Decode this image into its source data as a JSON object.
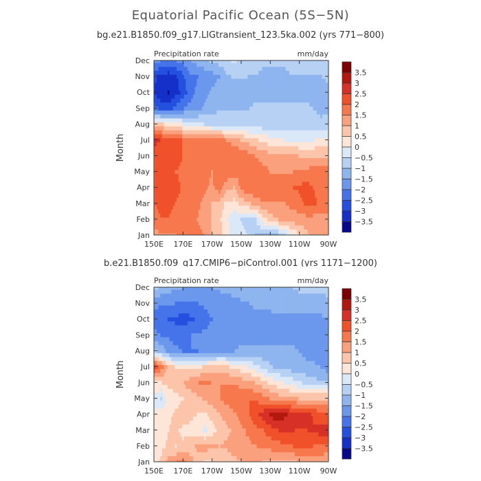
{
  "title": "Equatorial Pacific Ocean (5S−5N)",
  "panels": [
    {
      "subtitle": "bg.e21.B1850.f09_g17.LIGtransient_123.5ka.002 (yrs 771−800)",
      "variable_label": "Precipitation rate",
      "units_label": "mm/day",
      "ylabel": "Month"
    },
    {
      "subtitle": "b.e21.B1850.f09_g17.CMIP6−piControl.001 (yrs 1171−1200)",
      "variable_label": "Precipitation rate",
      "units_label": "mm/day",
      "ylabel": "Month"
    }
  ],
  "chart_data": [
    {
      "type": "heatmap",
      "title": "bg.e21.B1850.f09_g17.LIGtransient_123.5ka.002 (yrs 771−800)",
      "xlabel": "",
      "ylabel": "Month",
      "x_ticks": [
        "150E",
        "170E",
        "170W",
        "150W",
        "130W",
        "110W",
        "90W"
      ],
      "y_ticks": [
        "Jan",
        "Feb",
        "Mar",
        "Apr",
        "May",
        "Jun",
        "Jul",
        "Aug",
        "Sep",
        "Oct",
        "Nov",
        "Dec"
      ],
      "colorbar_levels": [
        "3.5",
        "3",
        "2.5",
        "2",
        "1.5",
        "1",
        "0.5",
        "0",
        "−0.5",
        "−1",
        "−1.5",
        "−2",
        "−2.5",
        "−3",
        "−3.5"
      ],
      "colorbar_colors": [
        "#7f0000",
        "#b2180e",
        "#d73027",
        "#f0502a",
        "#f7784c",
        "#fba07c",
        "#fcc5aa",
        "#fde6d8",
        "#dbe8f8",
        "#b7d1f4",
        "#8fb5ef",
        "#6b98ec",
        "#4574ea",
        "#2450e0",
        "#1430c8",
        "#08088c"
      ],
      "values": [
        [
          1.2,
          1.5,
          1.5,
          1.5,
          1.7,
          1.8,
          1.7,
          1.5,
          1.0,
          0.7,
          0.3,
          -0.3,
          -0.3,
          -0.5,
          -1.0,
          -1.0,
          -1.0,
          -1.0,
          -0.6,
          -0.1,
          0.5,
          0.9,
          1.2,
          1.2,
          1.1
        ],
        [
          1.8,
          2.0,
          2.0,
          1.8,
          1.8,
          1.7,
          1.5,
          1.3,
          1.0,
          0.6,
          0.1,
          -0.4,
          -0.5,
          -0.7,
          -0.5,
          0.3,
          0.7,
          1.0,
          1.2,
          1.3,
          1.3,
          1.3,
          1.3,
          1.3,
          1.4
        ],
        [
          2.0,
          2.2,
          2.2,
          2.0,
          1.8,
          1.7,
          1.6,
          1.3,
          1.0,
          0.8,
          0.4,
          0.3,
          0.7,
          0.9,
          1.2,
          1.4,
          1.5,
          1.5,
          1.5,
          1.6,
          1.8,
          2.2,
          2.1,
          1.8,
          1.7
        ],
        [
          2.0,
          2.1,
          2.1,
          2.2,
          1.9,
          1.6,
          1.9,
          1.6,
          1.4,
          1.8,
          1.2,
          1.0,
          1.6,
          1.9,
          2.0,
          2.0,
          2.0,
          1.9,
          1.9,
          2.0,
          2.1,
          2.2,
          2.0,
          1.8,
          1.7
        ],
        [
          2.0,
          2.2,
          2.2,
          2.0,
          1.9,
          1.9,
          1.7,
          1.6,
          1.5,
          2.0,
          1.9,
          1.7,
          1.7,
          1.8,
          1.9,
          1.7,
          1.5,
          1.5,
          1.5,
          1.5,
          1.6,
          1.6,
          1.8,
          1.7,
          1.7
        ],
        [
          2.0,
          2.1,
          2.3,
          2.3,
          2.0,
          2.0,
          1.9,
          1.8,
          2.0,
          2.0,
          2.0,
          1.9,
          1.9,
          1.7,
          1.5,
          1.3,
          1.2,
          1.2,
          1.1,
          1.1,
          1.0,
          1.0,
          1.0,
          1.0,
          1.0
        ],
        [
          2.8,
          2.5,
          2.3,
          2.2,
          2.0,
          2.0,
          2.0,
          2.0,
          1.8,
          1.7,
          1.5,
          1.3,
          1.0,
          0.8,
          0.6,
          0.4,
          0.2,
          0.1,
          0.0,
          0.0,
          0.0,
          0.0,
          0.0,
          0.1,
          0.2
        ],
        [
          0.8,
          0.6,
          0.3,
          0.2,
          0.0,
          -0.3,
          -0.4,
          -0.5,
          -0.6,
          -0.6,
          -0.7,
          -0.7,
          -0.7,
          -0.8,
          -0.8,
          -0.8,
          -0.8,
          -0.7,
          -0.7,
          -0.7,
          -0.7,
          -0.8,
          -0.8,
          -0.8,
          -0.7
        ],
        [
          -2.2,
          -2.6,
          -2.7,
          -2.3,
          -2.0,
          -1.8,
          -1.6,
          -1.4,
          -1.2,
          -1.1,
          -1.0,
          -1.0,
          -1.0,
          -1.0,
          -0.9,
          -0.9,
          -0.9,
          -0.9,
          -0.9,
          -0.9,
          -0.9,
          -0.9,
          -1.0,
          -1.2,
          -1.1
        ],
        [
          -3.0,
          -3.4,
          -3.5,
          -3.2,
          -2.8,
          -2.2,
          -1.9,
          -1.6,
          -1.4,
          -1.3,
          -1.3,
          -1.3,
          -1.3,
          -1.2,
          -1.2,
          -1.2,
          -1.2,
          -1.2,
          -1.1,
          -1.1,
          -1.1,
          -1.1,
          -1.2,
          -1.3,
          -1.1
        ],
        [
          -2.8,
          -3.2,
          -3.3,
          -3.1,
          -2.6,
          -2.1,
          -2.0,
          -1.8,
          -1.7,
          -1.5,
          -1.1,
          -0.9,
          -0.9,
          -1.0,
          -1.0,
          -1.1,
          -1.1,
          -1.1,
          -1.1,
          -1.0,
          -1.0,
          -1.0,
          -1.0,
          -1.0,
          -0.9
        ],
        [
          -1.9,
          -2.0,
          -2.1,
          -2.0,
          -1.9,
          -1.5,
          -1.3,
          -1.1,
          -0.9,
          -0.8,
          -0.6,
          -0.4,
          -0.6,
          -0.8,
          -0.9,
          -0.9,
          -0.9,
          -0.9,
          -0.9,
          -0.9,
          -0.9,
          -0.9,
          -0.9,
          -0.9,
          -0.8
        ]
      ]
    },
    {
      "type": "heatmap",
      "title": "b.e21.B1850.f09_g17.CMIP6−piControl.001 (yrs 1171−1200)",
      "xlabel": "",
      "ylabel": "Month",
      "x_ticks": [
        "150E",
        "170E",
        "170W",
        "150W",
        "130W",
        "110W",
        "90W"
      ],
      "y_ticks": [
        "Jan",
        "Feb",
        "Mar",
        "Apr",
        "May",
        "Jun",
        "Jul",
        "Aug",
        "Sep",
        "Oct",
        "Nov",
        "Dec"
      ],
      "colorbar_levels": [
        "3.5",
        "3",
        "2.5",
        "2",
        "1.5",
        "1",
        "0.5",
        "0",
        "−0.5",
        "−1",
        "−1.5",
        "−2",
        "−2.5",
        "−3",
        "−3.5"
      ],
      "colorbar_colors": [
        "#7f0000",
        "#b2180e",
        "#d73027",
        "#f0502a",
        "#f7784c",
        "#fba07c",
        "#fcc5aa",
        "#fde6d8",
        "#dbe8f8",
        "#b7d1f4",
        "#8fb5ef",
        "#6b98ec",
        "#4574ea",
        "#2450e0",
        "#1430c8",
        "#08088c"
      ],
      "values": [
        [
          0.3,
          0.6,
          1.2,
          1.5,
          1.8,
          1.2,
          0.8,
          0.5,
          0.5,
          0.6,
          0.7,
          0.9,
          1.0,
          1.1,
          1.1,
          1.0,
          0.9,
          0.8,
          0.8,
          0.9,
          1.1,
          1.2,
          1.2,
          1.1,
          1.0
        ],
        [
          0.2,
          0.4,
          0.6,
          0.5,
          0.6,
          0.8,
          1.1,
          1.2,
          1.1,
          1.0,
          1.1,
          1.2,
          1.3,
          1.4,
          1.5,
          1.6,
          1.7,
          1.8,
          1.9,
          2.0,
          2.1,
          2.1,
          2.0,
          2.0,
          1.9
        ],
        [
          0.2,
          0.3,
          0.5,
          0.6,
          0.4,
          0.4,
          0.3,
          -0.2,
          0.3,
          0.7,
          0.9,
          1.1,
          1.4,
          1.6,
          1.8,
          2.0,
          2.3,
          2.5,
          2.6,
          2.6,
          2.4,
          2.5,
          2.6,
          2.7,
          2.8
        ],
        [
          0.1,
          0.2,
          0.4,
          0.6,
          0.7,
          0.6,
          0.5,
          0.4,
          0.7,
          1.0,
          1.2,
          1.4,
          1.7,
          2.0,
          2.4,
          2.7,
          3.1,
          3.4,
          3.1,
          2.9,
          2.9,
          2.8,
          2.4,
          2.2,
          2.0
        ],
        [
          -0.3,
          -0.5,
          0.3,
          0.3,
          0.5,
          0.7,
          0.9,
          1.1,
          1.3,
          1.5,
          1.7,
          1.9,
          2.0,
          2.0,
          1.9,
          1.7,
          1.5,
          1.3,
          1.2,
          1.1,
          1.0,
          1.0,
          1.0,
          1.0,
          1.0
        ],
        [
          0.4,
          0.5,
          0.6,
          0.8,
          1.0,
          1.3,
          1.5,
          1.6,
          1.5,
          1.5,
          1.5,
          1.4,
          1.3,
          1.2,
          1.0,
          0.7,
          0.4,
          0.2,
          0.0,
          -0.2,
          -0.4,
          -0.6,
          -0.8,
          -0.9,
          -1.0
        ],
        [
          2.6,
          1.8,
          0.9,
          0.5,
          0.4,
          0.3,
          0.4,
          0.6,
          0.7,
          0.8,
          0.6,
          0.4,
          0.2,
          0.0,
          -0.3,
          -0.6,
          -0.9,
          -1.1,
          -1.2,
          -1.3,
          -1.4,
          -1.4,
          -1.4,
          -1.5,
          -1.8
        ],
        [
          -0.8,
          -1.2,
          -1.6,
          -1.9,
          -2.0,
          -2.0,
          -2.0,
          -1.9,
          -1.8,
          -1.7,
          -1.6,
          -1.5,
          -1.4,
          -1.4,
          -1.4,
          -1.4,
          -1.4,
          -1.4,
          -1.4,
          -1.4,
          -1.5,
          -1.6,
          -1.7,
          -1.8,
          -1.9
        ],
        [
          -1.8,
          -2.0,
          -2.1,
          -2.2,
          -2.1,
          -2.0,
          -1.9,
          -1.9,
          -1.8,
          -1.8,
          -1.7,
          -1.7,
          -1.7,
          -1.7,
          -1.7,
          -1.7,
          -1.7,
          -1.7,
          -1.7,
          -1.7,
          -1.7,
          -1.7,
          -1.7,
          -1.7,
          -1.6
        ],
        [
          -2.3,
          -2.4,
          -2.5,
          -2.6,
          -2.8,
          -2.6,
          -2.4,
          -2.2,
          -2.0,
          -1.9,
          -1.8,
          -1.8,
          -1.8,
          -1.7,
          -1.7,
          -1.7,
          -1.6,
          -1.6,
          -1.6,
          -1.6,
          -1.6,
          -1.6,
          -1.6,
          -1.6,
          -1.5
        ],
        [
          -1.8,
          -1.9,
          -1.9,
          -2.0,
          -2.1,
          -2.1,
          -2.0,
          -1.9,
          -1.8,
          -1.8,
          -1.8,
          -1.7,
          -1.6,
          -1.5,
          -1.4,
          -1.4,
          -1.4,
          -1.3,
          -1.3,
          -1.3,
          -1.2,
          -1.2,
          -1.2,
          -1.2,
          -1.1
        ],
        [
          -0.8,
          -1.1,
          -1.3,
          -1.4,
          -1.5,
          -1.5,
          -1.5,
          -1.5,
          -1.5,
          -1.4,
          -1.3,
          -1.2,
          -1.1,
          -1.1,
          -1.1,
          -1.1,
          -1.1,
          -1.1,
          -1.1,
          -1.0,
          -0.9,
          -0.9,
          -0.9,
          -0.9,
          -0.8
        ]
      ]
    }
  ]
}
